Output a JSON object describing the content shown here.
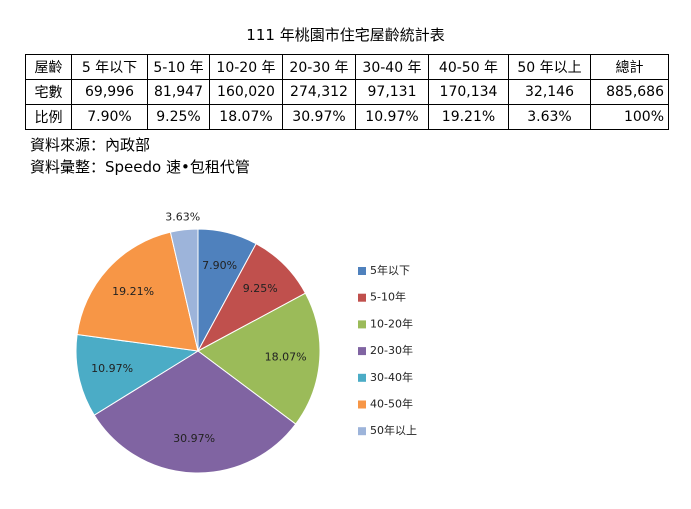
{
  "title": "111 年桃園市住宅屋齡統計表",
  "table": {
    "rows": [
      [
        "屋齡",
        "5 年以下",
        "5-10 年",
        "10-20 年",
        "20-30 年",
        "30-40 年",
        "40-50 年",
        "50 年以上",
        "總計"
      ],
      [
        "宅數",
        "69,996",
        "81,947",
        "160,020",
        "274,312",
        "97,131",
        "170,134",
        "32,146",
        "885,686"
      ],
      [
        "比例",
        "7.90%",
        "9.25%",
        "18.07%",
        "30.97%",
        "10.97%",
        "19.21%",
        "3.63%",
        "100%"
      ]
    ]
  },
  "notes": [
    "資料來源：內政部",
    "資料彙整：Speedo 速•包租代管"
  ],
  "chart_data": {
    "type": "pie",
    "categories": [
      "5年以下",
      "5-10年",
      "10-20年",
      "20-30年",
      "30-40年",
      "40-50年",
      "50年以上"
    ],
    "values": [
      7.9,
      9.25,
      18.07,
      30.97,
      10.97,
      19.21,
      3.63
    ],
    "value_labels": [
      "7.90%",
      "9.25%",
      "18.07%",
      "30.97%",
      "10.97%",
      "19.21%",
      "3.63%"
    ],
    "colors": [
      "#4f81bd",
      "#c0504d",
      "#9bbb59",
      "#8064a2",
      "#4bacc6",
      "#f79646",
      "#9db4da"
    ]
  }
}
